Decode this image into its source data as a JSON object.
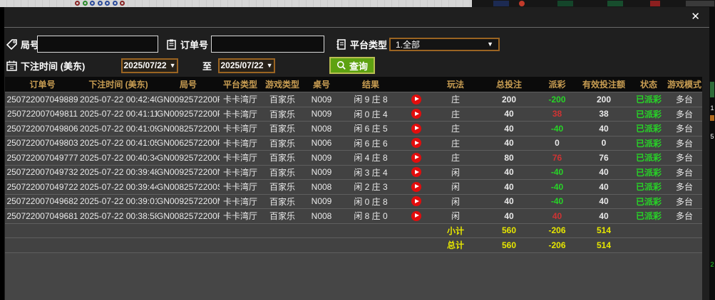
{
  "window": {
    "close_label": "✕"
  },
  "filters": {
    "game_no_label": "局号",
    "order_no_label": "订单号",
    "platform_type_label": "平台类型",
    "platform_type_value": "1.全部",
    "bet_time_label": "下注时间 (美东)",
    "date_from": "2025/07/22",
    "to_label": "至",
    "date_to": "2025/07/22",
    "query_label": "查询",
    "dropdown_arrow": "▼"
  },
  "table": {
    "columns": [
      "订单号",
      "下注时间 (美东)",
      "局号",
      "平台类型",
      "游戏类型",
      "桌号",
      "结果",
      "",
      "玩法",
      "总投注",
      "派彩",
      "有效投注额",
      "状态",
      "游戏模式"
    ],
    "row_fields": [
      "order_id",
      "bet_time",
      "game_no",
      "platform",
      "game_type",
      "table_no",
      "result",
      "video",
      "play",
      "total_bet",
      "payout",
      "valid_bet",
      "status",
      "mode"
    ],
    "rows": [
      {
        "order_id": "250722007049889",
        "bet_time": "2025-07-22 00:42:40",
        "game_no": "GN0092572200R",
        "platform": "卡卡湾厅",
        "game_type": "百家乐",
        "table_no": "N009",
        "result": "闲 9 庄 8",
        "play": "庄",
        "total_bet": "200",
        "payout": "-200",
        "payout_class": "loss",
        "valid_bet": "200",
        "status": "已派彩",
        "mode": "多台"
      },
      {
        "order_id": "250722007049811",
        "bet_time": "2025-07-22 00:41:11",
        "game_no": "GN0092572200P",
        "platform": "卡卡湾厅",
        "game_type": "百家乐",
        "table_no": "N009",
        "result": "闲 0 庄 4",
        "play": "庄",
        "total_bet": "40",
        "payout": "38",
        "payout_class": "win",
        "valid_bet": "38",
        "status": "已派彩",
        "mode": "多台"
      },
      {
        "order_id": "250722007049806",
        "bet_time": "2025-07-22 00:41:09",
        "game_no": "GN0082572200U",
        "platform": "卡卡湾厅",
        "game_type": "百家乐",
        "table_no": "N008",
        "result": "闲 6 庄 5",
        "play": "庄",
        "total_bet": "40",
        "payout": "-40",
        "payout_class": "loss",
        "valid_bet": "40",
        "status": "已派彩",
        "mode": "多台"
      },
      {
        "order_id": "250722007049803",
        "bet_time": "2025-07-22 00:41:05",
        "game_no": "GN0062572200P",
        "platform": "卡卡湾厅",
        "game_type": "百家乐",
        "table_no": "N006",
        "result": "闲 6 庄 6",
        "play": "庄",
        "total_bet": "40",
        "payout": "0",
        "payout_class": "even",
        "valid_bet": "0",
        "status": "已派彩",
        "mode": "多台"
      },
      {
        "order_id": "250722007049777",
        "bet_time": "2025-07-22 00:40:34",
        "game_no": "GN0092572200O",
        "platform": "卡卡湾厅",
        "game_type": "百家乐",
        "table_no": "N009",
        "result": "闲 4 庄 8",
        "play": "庄",
        "total_bet": "80",
        "payout": "76",
        "payout_class": "win",
        "valid_bet": "76",
        "status": "已派彩",
        "mode": "多台"
      },
      {
        "order_id": "250722007049732",
        "bet_time": "2025-07-22 00:39:48",
        "game_no": "GN0092572200N",
        "platform": "卡卡湾厅",
        "game_type": "百家乐",
        "table_no": "N009",
        "result": "闲 3 庄 4",
        "play": "闲",
        "total_bet": "40",
        "payout": "-40",
        "payout_class": "loss",
        "valid_bet": "40",
        "status": "已派彩",
        "mode": "多台"
      },
      {
        "order_id": "250722007049722",
        "bet_time": "2025-07-22 00:39:44",
        "game_no": "GN0082572200S",
        "platform": "卡卡湾厅",
        "game_type": "百家乐",
        "table_no": "N008",
        "result": "闲 2 庄 3",
        "play": "闲",
        "total_bet": "40",
        "payout": "-40",
        "payout_class": "loss",
        "valid_bet": "40",
        "status": "已派彩",
        "mode": "多台"
      },
      {
        "order_id": "250722007049682",
        "bet_time": "2025-07-22 00:39:01",
        "game_no": "GN0092572200M",
        "platform": "卡卡湾厅",
        "game_type": "百家乐",
        "table_no": "N009",
        "result": "闲 0 庄 8",
        "play": "闲",
        "total_bet": "40",
        "payout": "-40",
        "payout_class": "loss",
        "valid_bet": "40",
        "status": "已派彩",
        "mode": "多台"
      },
      {
        "order_id": "250722007049681",
        "bet_time": "2025-07-22 00:38:58",
        "game_no": "GN0082572200R",
        "platform": "卡卡湾厅",
        "game_type": "百家乐",
        "table_no": "N008",
        "result": "闲 8 庄 0",
        "play": "闲",
        "total_bet": "40",
        "payout": "40",
        "payout_class": "win",
        "valid_bet": "40",
        "status": "已派彩",
        "mode": "多台"
      }
    ],
    "subtotal": {
      "label": "小计",
      "total_bet": "560",
      "payout": "-206",
      "valid_bet": "514"
    },
    "total": {
      "label": "总计",
      "total_bet": "560",
      "payout": "-206",
      "valid_bet": "514"
    }
  },
  "backdrop": {
    "fragments": [
      "1",
      "5",
      "2"
    ],
    "roadmap_dot_colors": [
      "#8a2626",
      "#2a8a2a",
      "#2a4a9a",
      "#2a4a9a",
      "#2a4a9a",
      "#2a4a9a",
      "#8a2626"
    ]
  },
  "colors": {
    "accent_orange": "#9a6422",
    "query_green": "#5ea211",
    "header_gold": "#c89d52",
    "win_red": "#cf3333",
    "loss_green": "#27d427",
    "totals_yellow": "#e6e600",
    "row_bg": "#424242",
    "modal_bg": "#1f1f1f"
  }
}
